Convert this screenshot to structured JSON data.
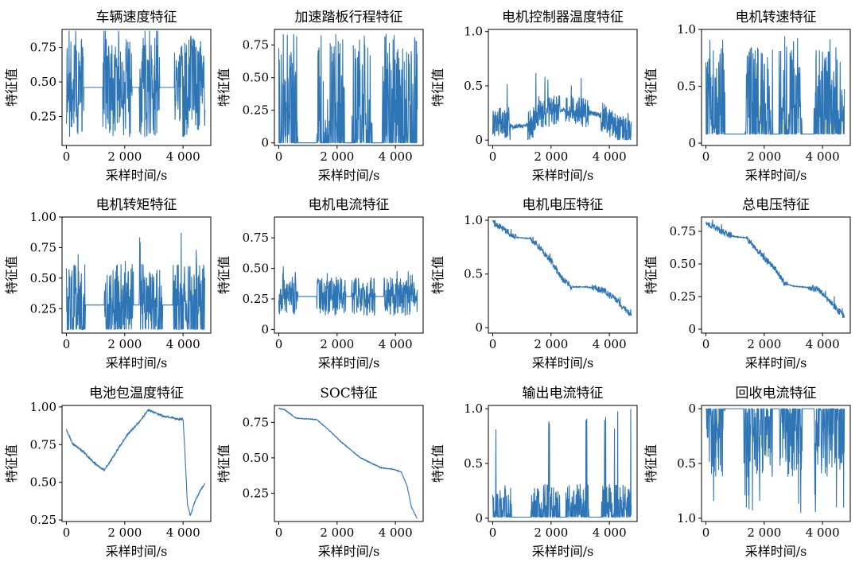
{
  "chart_data": [
    {
      "type": "line",
      "title": "车辆速度特征",
      "xlabel": "采样时间/s",
      "ylabel": "特征值",
      "xlim": [
        -150,
        4950
      ],
      "ylim": [
        0.04,
        0.88
      ],
      "xticks": [
        0,
        2000,
        4000
      ],
      "xtick_labels": [
        "0",
        "2 000",
        "4 000"
      ],
      "yticks": [
        0.25,
        0.5,
        0.75
      ],
      "ytick_labels": [
        "0.25",
        "0.50",
        "0.75"
      ],
      "y_inverted": false,
      "line_color": "#2e75b6",
      "shape": "noisy",
      "base": 0.46,
      "amp": 0.36,
      "lo": 0.06,
      "hi": 0.87,
      "points": [
        [
          0,
          0.5
        ],
        [
          4750,
          0.5
        ]
      ],
      "busy": [
        [
          0,
          600
        ],
        [
          1250,
          2250
        ],
        [
          2500,
          3200
        ],
        [
          3700,
          4750
        ]
      ],
      "idle": 0.46
    },
    {
      "type": "line",
      "title": "加速踏板行程特征",
      "xlabel": "采样时间/s",
      "ylabel": "特征值",
      "xlim": [
        -150,
        4950
      ],
      "ylim": [
        -0.02,
        0.87
      ],
      "xticks": [
        0,
        2000,
        4000
      ],
      "xtick_labels": [
        "0",
        "2 000",
        "4 000"
      ],
      "yticks": [
        0,
        0.25,
        0.5,
        0.75
      ],
      "ytick_labels": [
        "0",
        "0.25",
        "0.50",
        "0.75"
      ],
      "y_inverted": false,
      "line_color": "#2e75b6",
      "shape": "spiky_up",
      "base": 0.0,
      "amp": 0.6,
      "lo": 0.0,
      "hi": 0.85,
      "points": [
        [
          0,
          0
        ],
        [
          4750,
          0
        ]
      ],
      "busy": [
        [
          0,
          650
        ],
        [
          1300,
          2250
        ],
        [
          2450,
          3200
        ],
        [
          3550,
          4750
        ]
      ],
      "idle": 0.0
    },
    {
      "type": "line",
      "title": "电机控制器温度特征",
      "xlabel": "采样时间/s",
      "ylabel": "特征值",
      "xlim": [
        -150,
        4950
      ],
      "ylim": [
        -0.05,
        1.02
      ],
      "xticks": [
        0,
        2000,
        4000
      ],
      "xtick_labels": [
        "0",
        "2 000",
        "4 000"
      ],
      "yticks": [
        0,
        0.5,
        1.0
      ],
      "ytick_labels": [
        "0",
        "0.5",
        "1.0"
      ],
      "y_inverted": false,
      "line_color": "#2e75b6",
      "shape": "trend_noise",
      "base": 0.0,
      "amp": 0.14,
      "lo": 0.0,
      "hi": 0.97,
      "points": [
        [
          0,
          0.18
        ],
        [
          500,
          0.15
        ],
        [
          700,
          0.12
        ],
        [
          1300,
          0.14
        ],
        [
          1700,
          0.25
        ],
        [
          2300,
          0.28
        ],
        [
          3000,
          0.26
        ],
        [
          3600,
          0.24
        ],
        [
          4000,
          0.16
        ],
        [
          4400,
          0.08
        ],
        [
          4750,
          0.05
        ]
      ],
      "busy": [
        [
          0,
          600
        ],
        [
          1200,
          2300
        ],
        [
          2500,
          3300
        ],
        [
          3700,
          4750
        ]
      ],
      "idle": 0.14
    },
    {
      "type": "line",
      "title": "电机转速特征",
      "xlabel": "采样时间/s",
      "ylabel": "特征值",
      "xlim": [
        -150,
        4950
      ],
      "ylim": [
        -0.02,
        1.0
      ],
      "xticks": [
        0,
        2000,
        4000
      ],
      "xtick_labels": [
        "0",
        "2 000",
        "4 000"
      ],
      "yticks": [
        0,
        0.5,
        1.0
      ],
      "ytick_labels": [
        "0",
        "0.5",
        "1.0"
      ],
      "y_inverted": false,
      "line_color": "#2e75b6",
      "shape": "spiky_up",
      "base": 0.08,
      "amp": 0.55,
      "lo": 0.08,
      "hi": 0.96,
      "points": [
        [
          0,
          0.08
        ],
        [
          4750,
          0.08
        ]
      ],
      "busy": [
        [
          0,
          650
        ],
        [
          1350,
          2300
        ],
        [
          2500,
          3300
        ],
        [
          3700,
          4750
        ]
      ],
      "idle": 0.08
    },
    {
      "type": "line",
      "title": "电机转矩特征",
      "xlabel": "采样时间/s",
      "ylabel": "特征值",
      "xlim": [
        -150,
        4950
      ],
      "ylim": [
        0.05,
        1.0
      ],
      "xticks": [
        0,
        2000,
        4000
      ],
      "xtick_labels": [
        "0",
        "2 000",
        "4 000"
      ],
      "yticks": [
        0.25,
        0.5,
        0.75,
        1.0
      ],
      "ytick_labels": [
        "0.25",
        "0.50",
        "0.75",
        "1.00"
      ],
      "y_inverted": false,
      "line_color": "#2e75b6",
      "shape": "noisy",
      "base": 0.28,
      "amp": 0.34,
      "lo": 0.08,
      "hi": 0.96,
      "points": [
        [
          0,
          0.28
        ],
        [
          4750,
          0.28
        ]
      ],
      "busy": [
        [
          0,
          650
        ],
        [
          1300,
          2300
        ],
        [
          2500,
          3300
        ],
        [
          3650,
          4750
        ]
      ],
      "idle": 0.28
    },
    {
      "type": "line",
      "title": "电机电流特征",
      "xlabel": "采样时间/s",
      "ylabel": "特征值",
      "xlim": [
        -150,
        4950
      ],
      "ylim": [
        -0.03,
        0.92
      ],
      "xticks": [
        0,
        2000,
        4000
      ],
      "xtick_labels": [
        "0",
        "2 000",
        "4 000"
      ],
      "yticks": [
        0,
        0.25,
        0.5,
        0.75
      ],
      "ytick_labels": [
        "0",
        "0.25",
        "0.50",
        "0.75"
      ],
      "y_inverted": false,
      "line_color": "#2e75b6",
      "shape": "noisy",
      "base": 0.27,
      "amp": 0.16,
      "lo": 0.01,
      "hi": 0.9,
      "points": [
        [
          0,
          0.27
        ],
        [
          4750,
          0.27
        ]
      ],
      "busy": [
        [
          0,
          650
        ],
        [
          1300,
          2300
        ],
        [
          2500,
          3300
        ],
        [
          3600,
          4750
        ]
      ],
      "idle": 0.27
    },
    {
      "type": "line",
      "title": "电机电压特征",
      "xlabel": "采样时间/s",
      "ylabel": "特征值",
      "xlim": [
        -150,
        4950
      ],
      "ylim": [
        -0.05,
        1.03
      ],
      "xticks": [
        0,
        2000,
        4000
      ],
      "xtick_labels": [
        "0",
        "2 000",
        "4 000"
      ],
      "yticks": [
        0,
        0.5,
        1.0
      ],
      "ytick_labels": [
        "0",
        "0.5",
        "1.0"
      ],
      "y_inverted": false,
      "line_color": "#2e75b6",
      "shape": "trend_noise",
      "base": 0.0,
      "amp": 0.03,
      "lo": 0.05,
      "hi": 1.0,
      "points": [
        [
          0,
          0.98
        ],
        [
          300,
          0.93
        ],
        [
          600,
          0.87
        ],
        [
          800,
          0.84
        ],
        [
          1300,
          0.83
        ],
        [
          1600,
          0.75
        ],
        [
          2000,
          0.62
        ],
        [
          2400,
          0.45
        ],
        [
          2700,
          0.38
        ],
        [
          3200,
          0.38
        ],
        [
          3500,
          0.37
        ],
        [
          3900,
          0.33
        ],
        [
          4200,
          0.27
        ],
        [
          4500,
          0.18
        ],
        [
          4750,
          0.12
        ]
      ],
      "busy": [
        [
          0,
          800
        ],
        [
          1300,
          2700
        ],
        [
          3400,
          4750
        ]
      ],
      "idle": 0.0
    },
    {
      "type": "line",
      "title": "总电压特征",
      "xlabel": "采样时间/s",
      "ylabel": "特征值",
      "xlim": [
        -150,
        4950
      ],
      "ylim": [
        -0.03,
        0.86
      ],
      "xticks": [
        0,
        2000,
        4000
      ],
      "xtick_labels": [
        "0",
        "2 000",
        "4 000"
      ],
      "yticks": [
        0,
        0.25,
        0.5,
        0.75
      ],
      "ytick_labels": [
        "0",
        "0.25",
        "0.50",
        "0.75"
      ],
      "y_inverted": false,
      "line_color": "#2e75b6",
      "shape": "trend_noise",
      "base": 0.0,
      "amp": 0.025,
      "lo": 0.04,
      "hi": 0.84,
      "points": [
        [
          0,
          0.82
        ],
        [
          400,
          0.77
        ],
        [
          700,
          0.73
        ],
        [
          1000,
          0.71
        ],
        [
          1400,
          0.7
        ],
        [
          1800,
          0.6
        ],
        [
          2100,
          0.52
        ],
        [
          2400,
          0.46
        ],
        [
          2700,
          0.35
        ],
        [
          3000,
          0.33
        ],
        [
          3500,
          0.32
        ],
        [
          3900,
          0.3
        ],
        [
          4200,
          0.22
        ],
        [
          4500,
          0.15
        ],
        [
          4750,
          0.1
        ]
      ],
      "busy": [
        [
          0,
          900
        ],
        [
          1400,
          2800
        ],
        [
          3500,
          4750
        ]
      ],
      "idle": 0.0
    },
    {
      "type": "line",
      "title": "电池包温度特征",
      "xlabel": "采样时间/s",
      "ylabel": "特征值",
      "xlim": [
        -150,
        4950
      ],
      "ylim": [
        0.24,
        1.01
      ],
      "xticks": [
        0,
        2000,
        4000
      ],
      "xtick_labels": [
        "0",
        "2 000",
        "4 000"
      ],
      "yticks": [
        0.25,
        0.5,
        0.75,
        1.0
      ],
      "ytick_labels": [
        "0.25",
        "0.50",
        "0.75",
        "1.00"
      ],
      "y_inverted": false,
      "line_color": "#2e75b6",
      "shape": "smooth",
      "base": 0.0,
      "amp": 0.006,
      "lo": 0.25,
      "hi": 1.0,
      "points": [
        [
          0,
          0.85
        ],
        [
          200,
          0.76
        ],
        [
          600,
          0.7
        ],
        [
          1000,
          0.62
        ],
        [
          1300,
          0.58
        ],
        [
          1700,
          0.7
        ],
        [
          2100,
          0.82
        ],
        [
          2500,
          0.9
        ],
        [
          2800,
          0.98
        ],
        [
          3300,
          0.94
        ],
        [
          3800,
          0.92
        ],
        [
          4000,
          0.92
        ],
        [
          4050,
          0.75
        ],
        [
          4150,
          0.35
        ],
        [
          4250,
          0.28
        ],
        [
          4400,
          0.37
        ],
        [
          4600,
          0.45
        ],
        [
          4750,
          0.49
        ]
      ],
      "busy": [],
      "idle": 0.0
    },
    {
      "type": "line",
      "title": "SOC特征",
      "xlabel": "采样时间/s",
      "ylabel": "特征值",
      "xlim": [
        -150,
        4950
      ],
      "ylim": [
        0.05,
        0.87
      ],
      "xticks": [
        0,
        2000,
        4000
      ],
      "xtick_labels": [
        "0",
        "2 000",
        "4 000"
      ],
      "yticks": [
        0.25,
        0.5,
        0.75
      ],
      "ytick_labels": [
        "0.25",
        "0.50",
        "0.75"
      ],
      "y_inverted": false,
      "line_color": "#2e75b6",
      "shape": "smooth",
      "base": 0.0,
      "amp": 0.003,
      "lo": 0.06,
      "hi": 0.86,
      "points": [
        [
          0,
          0.85
        ],
        [
          200,
          0.84
        ],
        [
          600,
          0.78
        ],
        [
          1300,
          0.77
        ],
        [
          1700,
          0.7
        ],
        [
          2100,
          0.62
        ],
        [
          2500,
          0.55
        ],
        [
          2800,
          0.5
        ],
        [
          3100,
          0.47
        ],
        [
          3500,
          0.43
        ],
        [
          3900,
          0.42
        ],
        [
          4200,
          0.4
        ],
        [
          4400,
          0.3
        ],
        [
          4550,
          0.15
        ],
        [
          4750,
          0.07
        ]
      ],
      "busy": [],
      "idle": 0.0
    },
    {
      "type": "line",
      "title": "输出电流特征",
      "xlabel": "采样时间/s",
      "ylabel": "特征值",
      "xlim": [
        -150,
        4950
      ],
      "ylim": [
        -0.03,
        1.03
      ],
      "xticks": [
        0,
        2000,
        4000
      ],
      "xtick_labels": [
        "0",
        "2 000",
        "4 000"
      ],
      "yticks": [
        0,
        0.5,
        1.0
      ],
      "ytick_labels": [
        "0",
        "0.5",
        "1.0"
      ],
      "y_inverted": false,
      "line_color": "#2e75b6",
      "shape": "spiky_up",
      "base": 0.01,
      "amp": 0.22,
      "lo": 0.0,
      "hi": 1.0,
      "points": [
        [
          0,
          0.01
        ],
        [
          4750,
          0.01
        ]
      ],
      "busy": [
        [
          0,
          650
        ],
        [
          1300,
          2300
        ],
        [
          2500,
          3300
        ],
        [
          3700,
          4750
        ]
      ],
      "idle": 0.01
    },
    {
      "type": "line",
      "title": "回收电流特征",
      "xlabel": "采样时间/s",
      "ylabel": "特征值",
      "xlim": [
        -150,
        4950
      ],
      "ylim": [
        1.03,
        -0.03
      ],
      "xticks": [
        0,
        2000,
        4000
      ],
      "xtick_labels": [
        "0",
        "2 000",
        "4 000"
      ],
      "yticks": [
        0,
        0.5,
        1.0
      ],
      "ytick_labels": [
        "0",
        "0.5",
        "1.0"
      ],
      "y_inverted": true,
      "line_color": "#2e75b6",
      "shape": "spiky_up",
      "base": 0.0,
      "amp": 0.45,
      "lo": 0.0,
      "hi": 0.98,
      "points": [
        [
          0,
          0
        ],
        [
          4750,
          0
        ]
      ],
      "busy": [
        [
          0,
          650
        ],
        [
          1300,
          2300
        ],
        [
          2500,
          3300
        ],
        [
          3700,
          4750
        ]
      ],
      "idle": 0.0
    }
  ]
}
